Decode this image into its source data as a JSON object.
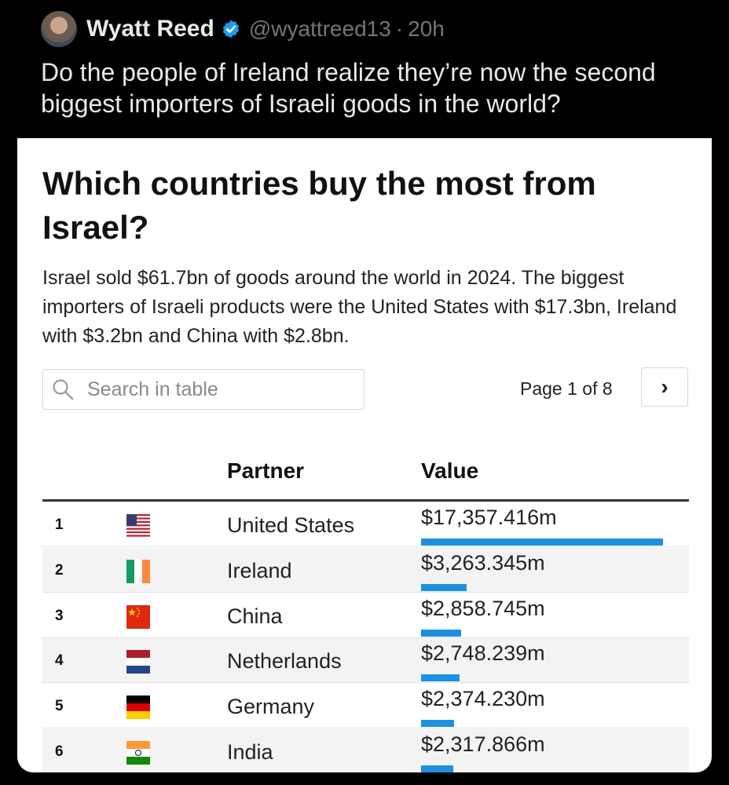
{
  "tweet": {
    "author": "Wyatt Reed",
    "handle": "@wyattreed13",
    "separator": "·",
    "time": "20h",
    "text": "Do the people of Ireland realize they’re now the second biggest importers of Israeli goods in the world?"
  },
  "card": {
    "title": "Which countries buy the most from Israel?",
    "intro": "Israel sold $61.7bn of goods around the world in 2024. The biggest importers of Israeli products were the United States with $17.3bn, Ireland with $3.2bn and China with $2.8bn.",
    "search": {
      "placeholder": "Search in table"
    },
    "pagination": {
      "label": "Page 1 of 8",
      "next": "›"
    },
    "table": {
      "columns": [
        "Partner",
        "Value"
      ],
      "rows": [
        {
          "rank": "1",
          "flag": "us-flag-icon",
          "partner": "United States",
          "value": "$17,357.416m",
          "amount": 17357.416
        },
        {
          "rank": "2",
          "flag": "ireland-flag-icon",
          "partner": "Ireland",
          "value": "$3,263.345m",
          "amount": 3263.345
        },
        {
          "rank": "3",
          "flag": "china-flag-icon",
          "partner": "China",
          "value": "$2,858.745m",
          "amount": 2858.745
        },
        {
          "rank": "4",
          "flag": "netherlands-flag-icon",
          "partner": "Netherlands",
          "value": "$2,748.239m",
          "amount": 2748.239
        },
        {
          "rank": "5",
          "flag": "germany-flag-icon",
          "partner": "Germany",
          "value": "$2,374.230m",
          "amount": 2374.23
        },
        {
          "rank": "6",
          "flag": "india-flag-icon",
          "partner": "India",
          "value": "$2,317.866m",
          "amount": 2317.866
        }
      ]
    }
  },
  "colors": {
    "bar": "#1e90e0",
    "verified": "#1d9bf0"
  }
}
